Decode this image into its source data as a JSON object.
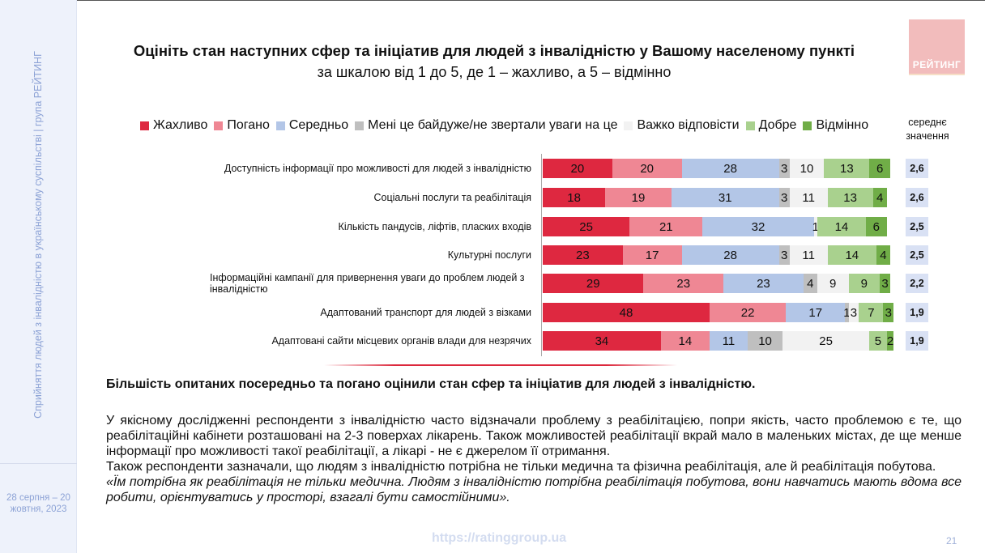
{
  "sidebar": {
    "text": "Сприйняття людей з інвалідністю в українському суспільстві | група РЕЙТИНГ",
    "date": "28 серпня – 20 жовтня, 2023"
  },
  "logo": {
    "text": "РЕЙТИНГ"
  },
  "title": "Оцініть стан наступних сфер та ініціатив для людей з інвалідністю у Вашому населеному пункті",
  "subtitle": "за шкалою від 1 до 5, де 1 – жахливо, а 5 – відмінно",
  "chart_data": {
    "type": "bar",
    "stacked": true,
    "orientation": "horizontal",
    "series": [
      {
        "name": "Жахливо",
        "color": "#de2840",
        "values": [
          20,
          18,
          25,
          23,
          29,
          48,
          34
        ]
      },
      {
        "name": "Погано",
        "color": "#ef8794",
        "values": [
          20,
          19,
          21,
          17,
          23,
          22,
          14
        ]
      },
      {
        "name": "Середньо",
        "color": "#b3c6e7",
        "values": [
          28,
          31,
          32,
          28,
          23,
          17,
          11
        ]
      },
      {
        "name": "Мені це байдуже/не звертали уваги на це",
        "color": "#bfbfbf",
        "values": [
          3,
          3,
          0,
          3,
          4,
          1,
          10
        ]
      },
      {
        "name": "Важко відповісти",
        "color": "#f2f2f2",
        "values": [
          10,
          11,
          1,
          11,
          9,
          3,
          25
        ]
      },
      {
        "name": "Добре",
        "color": "#a9d18e",
        "values": [
          13,
          13,
          14,
          14,
          9,
          7,
          5
        ]
      },
      {
        "name": "Відмінно",
        "color": "#70ad47",
        "values": [
          6,
          4,
          6,
          4,
          3,
          3,
          2
        ]
      }
    ],
    "categories": [
      "Доступність інформації про можливості для людей з інвалідністю",
      "Соціальні послуги та реабілітація",
      "Кількість пандусів, ліфтів, пласких входів",
      "Культурні послуги",
      "Інформаційні кампанії для привернення уваги до проблем людей з інвалідністю",
      "Адаптований транспорт для людей з візками",
      "Адаптовані сайти місцевих органів влади для незрячих"
    ],
    "avg_header": "середнє значення",
    "averages": [
      "2,6",
      "2,6",
      "2,5",
      "2,5",
      "2,2",
      "1,9",
      "1,9"
    ],
    "legend": "top"
  },
  "conclusion": "Більшість опитаних посередньо та погано оцінили стан сфер та ініціатив для людей з інвалідністю.",
  "body": {
    "p1": "У якісному дослідженні респонденти з інвалідністю часто відзначали проблему з реабілітацією, попри якість, часто проблемою є те, що реабілітаційні кабінети розташовані на 2-3 поверхах лікарень. Також можливостей реабілітації вкрай мало в маленьких містах, де ще менше інформації про можливості такої реабілітації, а лікарі - не є джерелом її отримання.",
    "p2": "Також респонденти зазначали, що людям з інвалідністю потрібна не тільки медична та фізична реабілітація, але й реабілітація побутова.",
    "quote": "«Їм потрібна як реабілітація не тільки медична. Людям з інвалідністю потрібна реабілітація побутова, вони навчатись мають вдома все робити, орієнтуватись у просторі, взагалі бути самостійними»."
  },
  "footer": {
    "url": "https://ratinggroup.ua",
    "page": "21"
  }
}
